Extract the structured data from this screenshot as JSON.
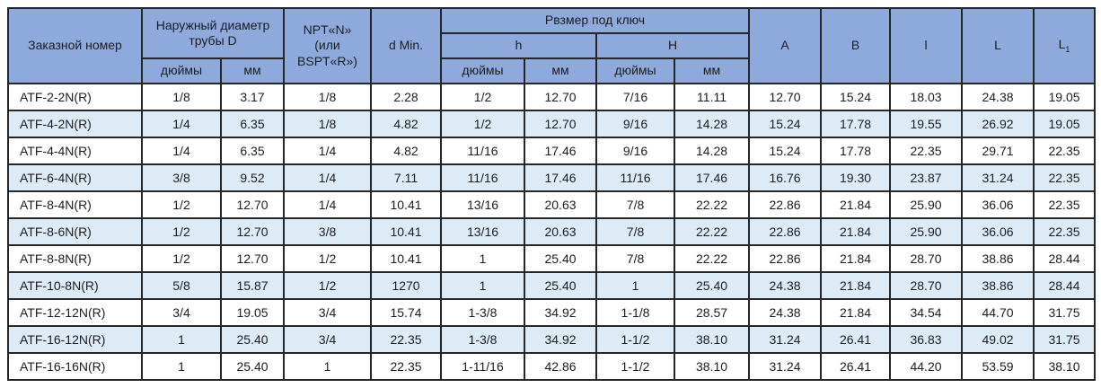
{
  "colors": {
    "header_bg": "#8EA9DB",
    "stripe_bg": "#DDEBF7",
    "row_bg": "#FFFFFF",
    "border": "#262626",
    "text": "#1D1D1F"
  },
  "table": {
    "header": {
      "order_number": "Заказной номер",
      "outer_diameter_lines": [
        "Наружный диаметр",
        "трубы D"
      ],
      "npt_lines": [
        "NPT«N»",
        "(или",
        "BSPT«R»)"
      ],
      "d_min": "d Min.",
      "wrench_size": "Рвзмер под ключ",
      "h_lower": "h",
      "h_upper": "H",
      "inches": "дюймы",
      "mm": "мм",
      "col_a": "A",
      "col_b": "B",
      "col_l_small": "l",
      "col_l_big": "L",
      "col_l1": {
        "base": "L",
        "sub": "1"
      }
    },
    "rows": [
      [
        "ATF-2-2N(R)",
        "1/8",
        "3.17",
        "1/8",
        "2.28",
        "1/2",
        "12.70",
        "7/16",
        "11.11",
        "12.70",
        "15.24",
        "18.03",
        "24.38",
        "19.05"
      ],
      [
        "ATF-4-2N(R)",
        "1/4",
        "6.35",
        "1/8",
        "4.82",
        "1/2",
        "12.70",
        "9/16",
        "14.28",
        "15.24",
        "17.78",
        "19.55",
        "26.92",
        "19.05"
      ],
      [
        "ATF-4-4N(R)",
        "1/4",
        "6.35",
        "1/4",
        "4.82",
        "11/16",
        "17.46",
        "9/16",
        "14.28",
        "15.24",
        "17.78",
        "22.35",
        "29.71",
        "22.35"
      ],
      [
        "ATF-6-4N(R)",
        "3/8",
        "9.52",
        "1/4",
        "7.11",
        "11/16",
        "17.46",
        "11/16",
        "17.46",
        "16.76",
        "19.30",
        "23.87",
        "31.24",
        "22.35"
      ],
      [
        "ATF-8-4N(R)",
        "1/2",
        "12.70",
        "1/4",
        "10.41",
        "13/16",
        "20.63",
        "7/8",
        "22.22",
        "22.86",
        "21.84",
        "25.90",
        "36.06",
        "22.35"
      ],
      [
        "ATF-8-6N(R)",
        "1/2",
        "12.70",
        "3/8",
        "10.41",
        "13/16",
        "20.63",
        "7/8",
        "22.22",
        "22.86",
        "21.84",
        "25.90",
        "36.06",
        "22.35"
      ],
      [
        "ATF-8-8N(R)",
        "1/2",
        "12.70",
        "1/2",
        "10.41",
        "1",
        "25.40",
        "7/8",
        "22.22",
        "22.86",
        "21.84",
        "28.70",
        "38.86",
        "28.44"
      ],
      [
        "ATF-10-8N(R)",
        "5/8",
        "15.87",
        "1/2",
        "1270",
        "1",
        "25.40",
        "1",
        "25.40",
        "24.38",
        "21.84",
        "28.70",
        "38.86",
        "28.44"
      ],
      [
        "ATF-12-12N(R)",
        "3/4",
        "19.05",
        "3/4",
        "15.74",
        "1-3/8",
        "34.92",
        "1-1/8",
        "28.57",
        "24.38",
        "21.84",
        "34.54",
        "44.70",
        "31.75"
      ],
      [
        "ATF-16-12N(R)",
        "1",
        "25.40",
        "3/4",
        "22.35",
        "1-3/8",
        "34.92",
        "1-1/2",
        "38.10",
        "31.24",
        "26.41",
        "36.83",
        "49.02",
        "31.75"
      ],
      [
        "ATF-16-16N(R)",
        "1",
        "25.40",
        "1",
        "22.35",
        "1-11/16",
        "42.86",
        "1-1/2",
        "38.10",
        "31.24",
        "26.41",
        "44.20",
        "53.59",
        "38.10"
      ]
    ]
  }
}
